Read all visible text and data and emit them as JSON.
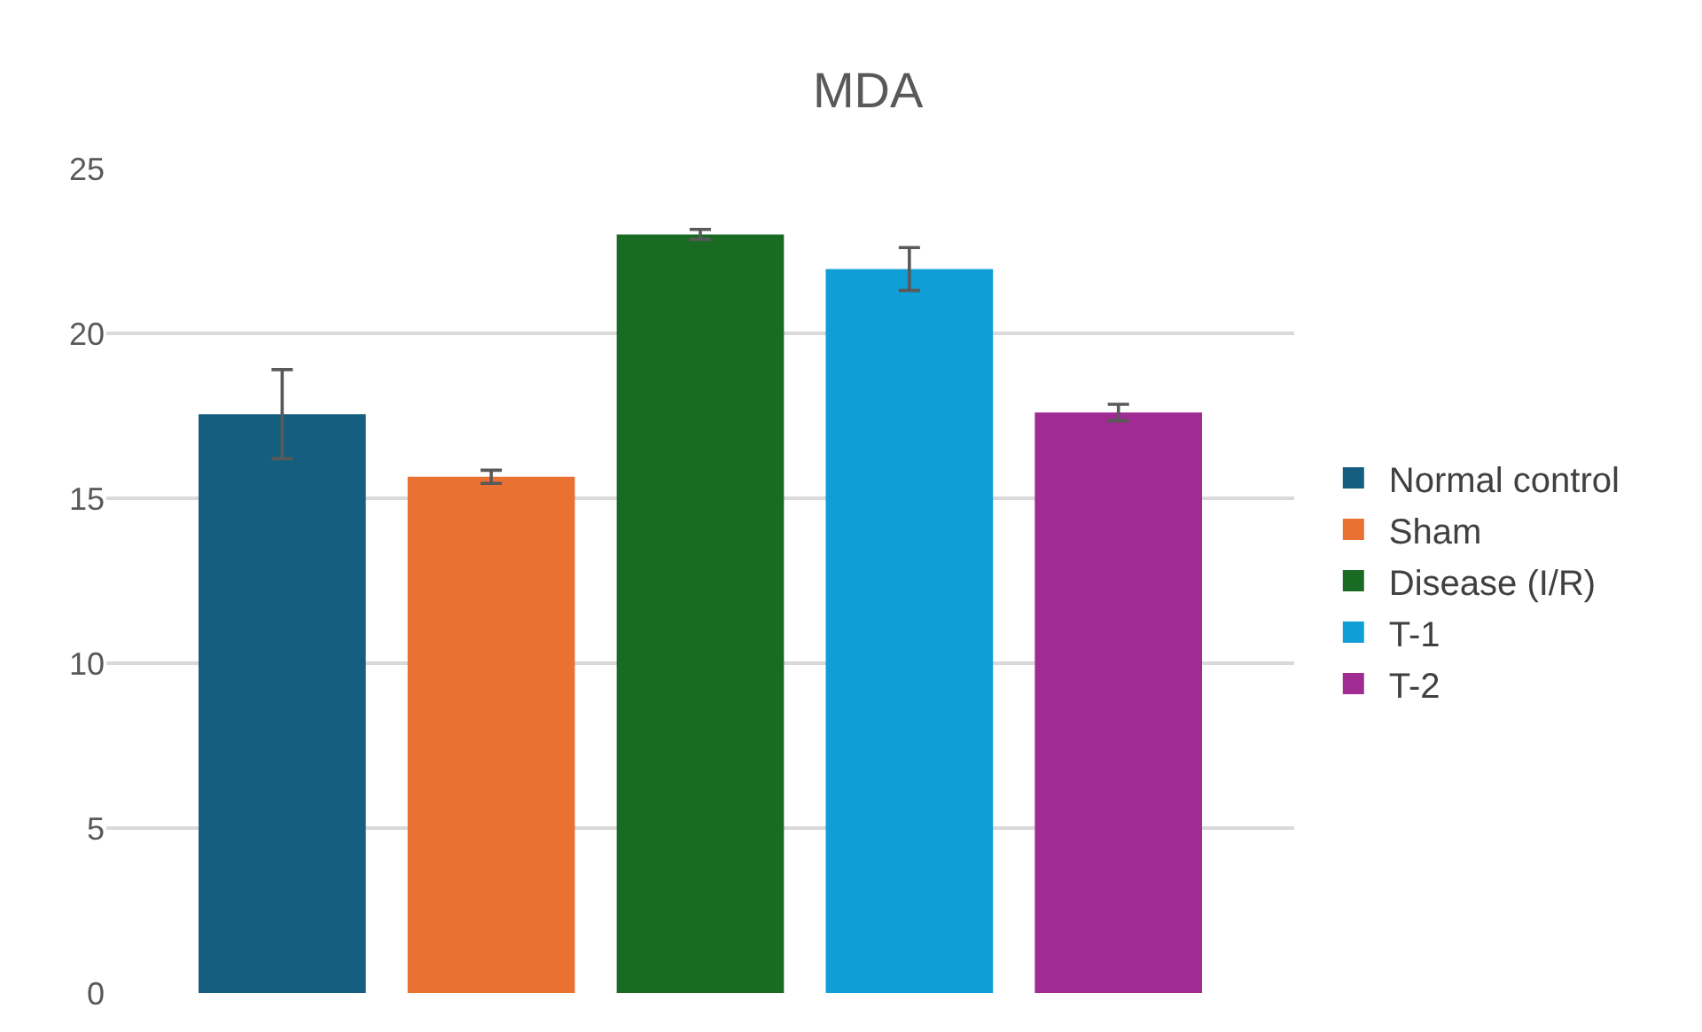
{
  "chart_data": {
    "type": "bar",
    "title": "MDA",
    "categories": [
      null
    ],
    "series": [
      {
        "name": "Normal control",
        "color": "#155e80",
        "values": [
          17.55
        ],
        "errors": [
          1.35
        ]
      },
      {
        "name": "Sham",
        "color": "#e97132",
        "values": [
          15.65
        ],
        "errors": [
          0.2
        ]
      },
      {
        "name": "Disease (I/R)",
        "color": "#196b24",
        "values": [
          23
        ],
        "errors": [
          0.15
        ]
      },
      {
        "name": "T-1",
        "color": "#0f9ed5",
        "values": [
          21.95
        ],
        "errors": [
          0.65
        ]
      },
      {
        "name": "T-2",
        "color": "#a02b93",
        "values": [
          17.6
        ],
        "errors": [
          0.25
        ]
      }
    ],
    "ylim": [
      0,
      25
    ],
    "yticks": [
      0,
      5,
      10,
      15,
      20,
      25
    ],
    "grid": "y",
    "legend": "right",
    "tick_labels": "y"
  }
}
